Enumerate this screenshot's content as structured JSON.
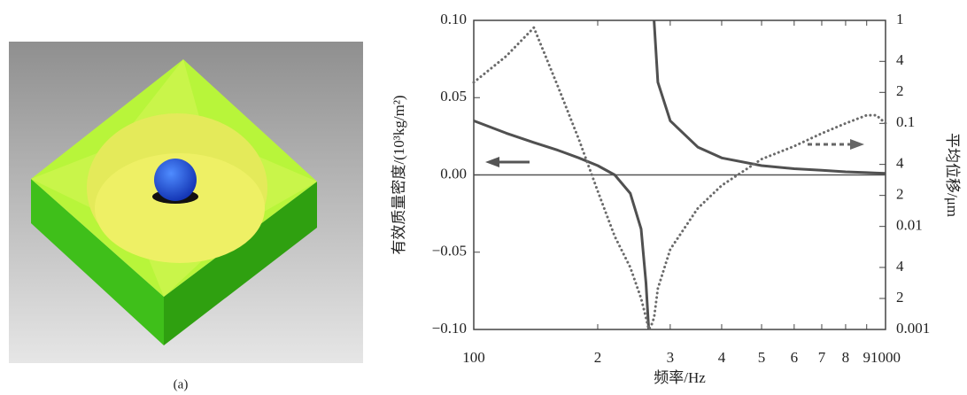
{
  "panel_label": "(a)",
  "chart_data": {
    "type": "line",
    "xlabel": "频率/Hz",
    "ylabel": "有效质量密度/(10³kg/m²)",
    "y2label": "平均位移/μm",
    "xscale": "log",
    "y2scale": "log",
    "x": [
      100,
      120,
      140,
      160,
      180,
      200,
      220,
      240,
      255,
      262,
      266,
      270,
      274,
      280,
      300,
      350,
      400,
      500,
      600,
      700,
      800,
      900,
      950,
      1000
    ],
    "series": [
      {
        "color": "#505050",
        "style": "solid",
        "axis": "y",
        "values": [
          0.035,
          0.027,
          0.021,
          0.016,
          0.011,
          0.006,
          0.0,
          -0.012,
          -0.035,
          -0.07,
          -0.1,
          null,
          0.1,
          0.06,
          0.035,
          0.018,
          0.011,
          0.006,
          0.004,
          0.003,
          0.002,
          0.0015,
          0.0012,
          0.001
        ]
      },
      {
        "color": "#6a6a6a",
        "style": "dotted",
        "axis": "y2",
        "values": [
          0.25,
          0.45,
          0.85,
          0.23,
          0.07,
          0.022,
          0.008,
          0.004,
          0.002,
          0.0013,
          0.001,
          0.0011,
          0.0013,
          0.0025,
          0.006,
          0.015,
          0.025,
          0.045,
          0.06,
          0.08,
          0.1,
          0.12,
          0.12,
          0.1
        ]
      }
    ],
    "xlim": [
      100,
      1000
    ],
    "xticks": [
      100,
      {
        "value": 200,
        "label": "2"
      },
      {
        "value": 300,
        "label": "3"
      },
      {
        "value": 400,
        "label": "4"
      },
      {
        "value": 500,
        "label": "5"
      },
      {
        "value": 600,
        "label": "6"
      },
      {
        "value": 700,
        "label": "7"
      },
      {
        "value": 800,
        "label": "8"
      },
      {
        "value": 900,
        "label": "9"
      },
      1000
    ],
    "ylim": [
      -0.1,
      0.1
    ],
    "yticks": [
      {
        "value": -0.1,
        "label": "−0.10"
      },
      {
        "value": -0.05,
        "label": "−0.05"
      },
      {
        "value": 0,
        "label": "0.00"
      },
      {
        "value": 0.05,
        "label": "0.05"
      },
      {
        "value": 0.1,
        "label": "0.10"
      }
    ],
    "y2lim": [
      0.001,
      1
    ],
    "y2ticks": [
      1,
      {
        "value": 0.4,
        "label": "4"
      },
      {
        "value": 0.2,
        "label": "2"
      },
      0.1,
      {
        "value": 0.04,
        "label": "4"
      },
      {
        "value": 0.02,
        "label": "2"
      },
      0.01,
      {
        "value": 0.004,
        "label": "4"
      },
      {
        "value": 0.002,
        "label": "2"
      },
      0.001
    ]
  }
}
